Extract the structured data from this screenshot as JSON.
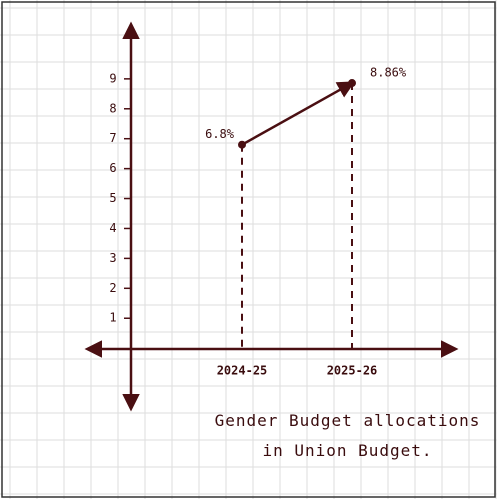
{
  "chart_data": {
    "type": "line",
    "title": "Gender Budget allocations in Union Budget.",
    "categories": [
      "2024-25",
      "2025-26"
    ],
    "series": [
      {
        "name": null,
        "color": "#4a0f12",
        "values": [
          6.8,
          8.86
        ],
        "value_labels": [
          "6.8%",
          "8.86%"
        ]
      }
    ],
    "ylim": [
      -2,
      10.8
    ],
    "yticks": [
      1,
      2,
      3,
      4,
      5,
      6,
      7,
      8,
      9
    ],
    "grid": true
  }
}
